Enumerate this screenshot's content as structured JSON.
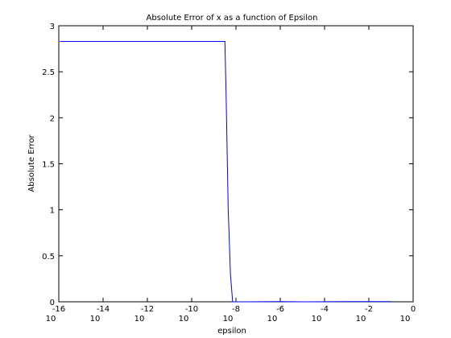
{
  "chart_data": {
    "type": "line",
    "title": "Absolute Error of x as a function of Epsilon",
    "xlabel": "epsilon",
    "ylabel": "Absolute Error",
    "xscale": "log",
    "xlim_exponent": [
      -16,
      0
    ],
    "ylim": [
      0,
      3
    ],
    "x_ticks": [
      {
        "base": "10",
        "exp": "-16"
      },
      {
        "base": "10",
        "exp": "-14"
      },
      {
        "base": "10",
        "exp": "-12"
      },
      {
        "base": "10",
        "exp": "-10"
      },
      {
        "base": "10",
        "exp": "-8"
      },
      {
        "base": "10",
        "exp": "-6"
      },
      {
        "base": "10",
        "exp": "-4"
      },
      {
        "base": "10",
        "exp": "-2"
      },
      {
        "base": "10",
        "exp": "0"
      }
    ],
    "y_ticks": [
      "0",
      "0.5",
      "1",
      "1.5",
      "2",
      "2.5",
      "3"
    ],
    "y_tick_values": [
      0,
      0.5,
      1,
      1.5,
      2,
      2.5,
      3
    ],
    "grid": false,
    "legend": "none",
    "series": [
      {
        "color": "#0000ff",
        "x_exponent": [
          -15.95,
          -8.5,
          -8.45,
          -8.35,
          -8.25,
          -8.15,
          -7.5,
          -6.0,
          -5.0,
          -3.0,
          -2.0,
          -1.0
        ],
        "y": [
          2.83,
          2.83,
          2.3,
          1.0,
          0.3,
          0.0,
          0.0,
          0.002,
          0.0,
          0.002,
          0.002,
          0.002
        ]
      }
    ]
  }
}
